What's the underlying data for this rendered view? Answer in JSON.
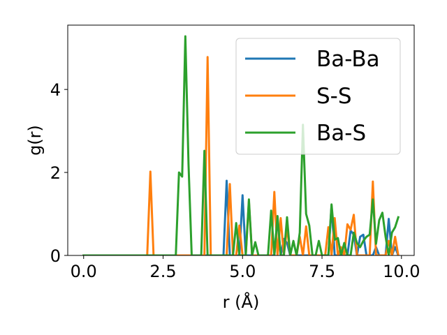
{
  "chart_data": {
    "type": "line",
    "title": "",
    "xlabel": "r (Å)",
    "ylabel": "g(r)",
    "xlim": [
      -0.5,
      10.4
    ],
    "ylim": [
      0,
      5.55
    ],
    "xticks": [
      0.0,
      2.5,
      5.0,
      7.5,
      10.0
    ],
    "xtick_labels": [
      "0.0",
      "2.5",
      "5.0",
      "7.5",
      "10.0"
    ],
    "yticks": [
      0,
      2,
      4
    ],
    "ytick_labels": [
      "0",
      "2",
      "4"
    ],
    "grid": false,
    "legend": {
      "placement": "top-right"
    },
    "x": [
      0.0,
      0.1,
      0.2,
      0.3,
      0.4,
      0.5,
      0.6,
      0.7,
      0.8,
      0.9,
      1.0,
      1.1,
      1.2,
      1.3,
      1.4,
      1.5,
      1.6,
      1.7,
      1.8,
      1.9,
      2.0,
      2.1,
      2.2,
      2.3,
      2.4,
      2.5,
      2.6,
      2.7,
      2.8,
      2.9,
      3.0,
      3.1,
      3.2,
      3.3,
      3.4,
      3.5,
      3.6,
      3.7,
      3.8,
      3.9,
      4.0,
      4.1,
      4.2,
      4.3,
      4.4,
      4.5,
      4.6,
      4.7,
      4.8,
      4.9,
      5.0,
      5.1,
      5.2,
      5.3,
      5.4,
      5.5,
      5.6,
      5.7,
      5.8,
      5.9,
      6.0,
      6.1,
      6.2,
      6.3,
      6.4,
      6.5,
      6.6,
      6.7,
      6.8,
      6.9,
      7.0,
      7.1,
      7.2,
      7.3,
      7.4,
      7.5,
      7.6,
      7.7,
      7.8,
      7.9,
      8.0,
      8.1,
      8.2,
      8.3,
      8.4,
      8.5,
      8.6,
      8.7,
      8.8,
      8.9,
      9.0,
      9.1,
      9.2,
      9.3,
      9.4,
      9.5,
      9.6,
      9.7,
      9.8,
      9.9
    ],
    "series": [
      {
        "name": "Ba-Ba",
        "color": "#1f77b4",
        "values": [
          0,
          0,
          0,
          0,
          0,
          0,
          0,
          0,
          0,
          0,
          0,
          0,
          0,
          0,
          0,
          0,
          0,
          0,
          0,
          0,
          0,
          0,
          0,
          0,
          0,
          0,
          0,
          0,
          0,
          0,
          0,
          0,
          0,
          0,
          0,
          0,
          0,
          0,
          0,
          0,
          0,
          0,
          0,
          0,
          0,
          1.8,
          0,
          0,
          0,
          0,
          1.45,
          0,
          0,
          0,
          0,
          0,
          0,
          0,
          0,
          0,
          0,
          0.9,
          0,
          0.4,
          0.3,
          0,
          0,
          0,
          0,
          0,
          0,
          0,
          0,
          0,
          0,
          0,
          0,
          0,
          1.2,
          0,
          0,
          0,
          0,
          0,
          0.6,
          0.5,
          0,
          0.45,
          0.5,
          0,
          0,
          0,
          0.2,
          0,
          0,
          0,
          0.88,
          0,
          0.2,
          0
        ]
      },
      {
        "name": "S-S",
        "color": "#ff7f0e",
        "values": [
          0,
          0,
          0,
          0,
          0,
          0,
          0,
          0,
          0,
          0,
          0,
          0,
          0,
          0,
          0,
          0,
          0,
          0,
          0,
          0,
          0,
          2.02,
          0,
          0,
          0,
          0,
          0,
          0,
          0,
          0,
          0,
          0,
          0,
          0,
          0,
          0,
          0,
          0,
          0,
          4.78,
          0,
          0,
          0,
          0,
          0,
          0,
          1.72,
          0,
          0,
          0.72,
          0,
          0,
          1.3,
          0,
          0,
          0,
          0,
          0,
          0,
          0,
          1.53,
          0,
          0.9,
          0,
          0.68,
          0,
          0,
          0,
          0.45,
          0,
          0.7,
          0,
          0,
          0,
          0,
          0,
          0,
          0.68,
          0,
          0.9,
          0,
          0.2,
          0,
          0.75,
          0.62,
          0.98,
          0,
          0,
          0,
          0,
          0,
          1.78,
          0,
          0,
          0,
          0,
          0.35,
          0,
          0.45,
          0
        ]
      },
      {
        "name": "Ba-S",
        "color": "#2ca02c",
        "values": [
          0,
          0,
          0,
          0,
          0,
          0,
          0,
          0,
          0,
          0,
          0,
          0,
          0,
          0,
          0,
          0,
          0,
          0,
          0,
          0,
          0,
          0,
          0,
          0,
          0,
          0,
          0,
          0,
          0,
          0,
          2.0,
          1.9,
          5.28,
          2.2,
          0,
          0,
          0,
          0,
          2.52,
          0,
          0,
          0,
          0,
          0,
          0,
          0,
          0,
          0,
          0.78,
          0,
          0,
          0,
          1.35,
          0,
          0.32,
          0,
          0,
          0,
          0,
          1.08,
          0,
          0.95,
          0,
          0,
          0.92,
          0,
          0.35,
          0,
          0.55,
          3.15,
          1.0,
          0.72,
          0,
          0,
          0.35,
          0,
          0,
          0,
          1.23,
          0.38,
          0.42,
          0,
          0.3,
          0,
          0,
          0.55,
          0.3,
          0.2,
          0.35,
          0.45,
          0.5,
          1.35,
          0.28,
          0.85,
          1.03,
          0.45,
          0,
          0.55,
          0.68,
          0.92
        ]
      }
    ]
  }
}
